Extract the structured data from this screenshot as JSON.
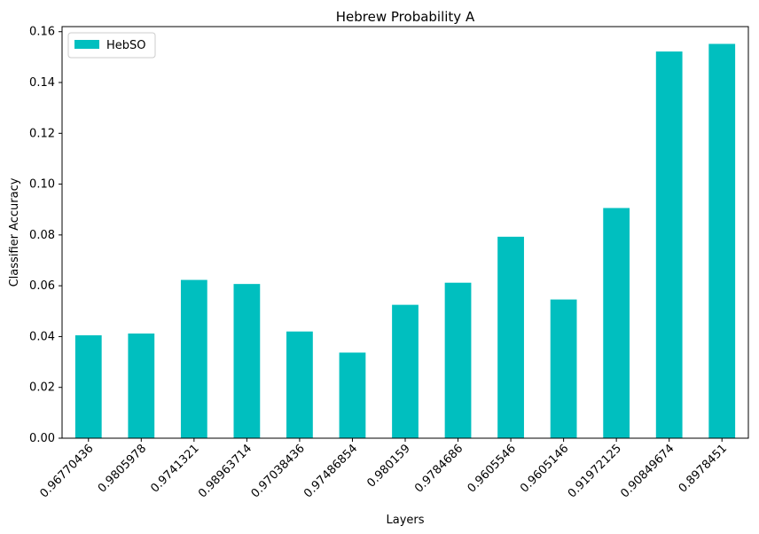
{
  "chart_data": {
    "type": "bar",
    "title": "Hebrew Probability A",
    "xlabel": "Layers",
    "ylabel": "Classifier Accuracy",
    "categories": [
      "0.96770436",
      "0.9805978",
      "0.9741321",
      "0.98963714",
      "0.97038436",
      "0.97486854",
      "0.980159",
      "0.9784686",
      "0.9605546",
      "0.9605146",
      "0.91972125",
      "0.90849674",
      "0.8978451"
    ],
    "series": [
      {
        "name": "HebSO",
        "color": "#00bfbf",
        "values": [
          0.0405,
          0.0412,
          0.0623,
          0.0607,
          0.042,
          0.0337,
          0.0525,
          0.0612,
          0.0793,
          0.0546,
          0.0906,
          0.1522,
          0.1552
        ]
      }
    ],
    "ylim": [
      0,
      0.162
    ],
    "yticks": [
      0.0,
      0.02,
      0.04,
      0.06,
      0.08,
      0.1,
      0.12,
      0.14,
      0.16
    ],
    "ytick_labels": [
      "0.00",
      "0.02",
      "0.04",
      "0.06",
      "0.08",
      "0.10",
      "0.12",
      "0.14",
      "0.16"
    ],
    "legend_position": "top-left",
    "grid": false
  }
}
